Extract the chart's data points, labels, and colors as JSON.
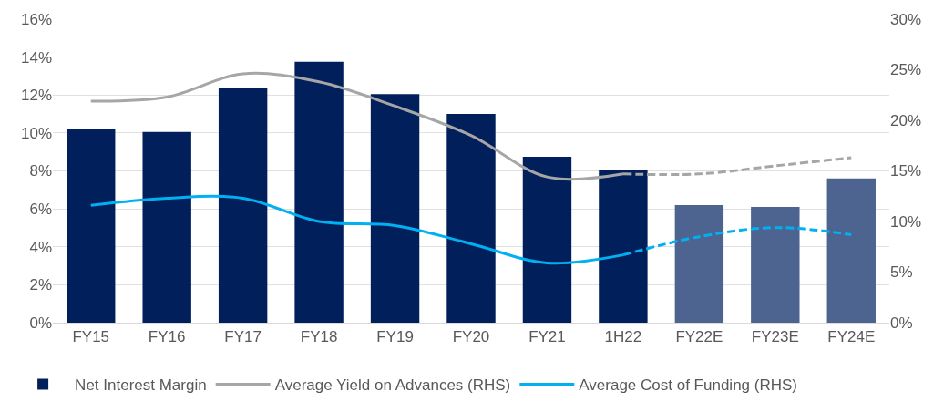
{
  "chart_data": {
    "type": "bar",
    "categories": [
      "FY15",
      "FY16",
      "FY17",
      "FY18",
      "FY19",
      "FY20",
      "FY21",
      "1H22",
      "FY22E",
      "FY23E",
      "FY24E"
    ],
    "series": [
      {
        "name": "Net Interest Margin",
        "colors": [
          "#001f5b",
          "#001f5b",
          "#001f5b",
          "#001f5b",
          "#001f5b",
          "#001f5b",
          "#001f5b",
          "#001f5b",
          "#4d6491",
          "#4d6491",
          "#4d6491"
        ],
        "values": [
          10.2,
          10.05,
          12.35,
          13.75,
          12.05,
          11.0,
          8.75,
          8.05,
          6.2,
          6.1,
          7.6
        ]
      },
      {
        "name": "Average Yield on Advances (RHS)",
        "type": "line",
        "axis": "y2",
        "color": "#a6a6a6",
        "line_style": "solid",
        "values": [
          21.9,
          22.3,
          24.6,
          23.8,
          21.4,
          18.5,
          14.4,
          14.7,
          null,
          null,
          null
        ]
      },
      {
        "type": "line",
        "axis": "y2",
        "color": "#a6a6a6",
        "line_style": "dashed",
        "values": [
          null,
          null,
          null,
          null,
          null,
          null,
          null,
          14.7,
          14.7,
          15.5,
          16.3
        ]
      },
      {
        "name": "Average Cost of Funding (RHS)",
        "type": "line",
        "axis": "y2",
        "color": "#00b0f0",
        "line_style": "solid",
        "values": [
          11.6,
          12.3,
          12.3,
          10.0,
          9.6,
          7.8,
          5.9,
          6.7,
          null,
          null,
          null
        ]
      },
      {
        "type": "line",
        "axis": "y2",
        "color": "#00b0f0",
        "line_style": "dashed",
        "values": [
          null,
          null,
          null,
          null,
          null,
          null,
          null,
          6.7,
          8.5,
          9.4,
          8.7
        ]
      }
    ],
    "ylim": [
      0,
      16
    ],
    "yticks": [
      {
        "value": 0,
        "label": "0%"
      },
      {
        "value": 2,
        "label": "2%"
      },
      {
        "value": 4,
        "label": "4%"
      },
      {
        "value": 6,
        "label": "6%"
      },
      {
        "value": 8,
        "label": "8%"
      },
      {
        "value": 10,
        "label": "10%"
      },
      {
        "value": 12,
        "label": "12%"
      },
      {
        "value": 14,
        "label": "14%"
      },
      {
        "value": 16,
        "label": "16%"
      }
    ],
    "y2lim": [
      0,
      30
    ],
    "y2ticks": [
      {
        "value": 0,
        "label": "0%"
      },
      {
        "value": 5,
        "label": "5%"
      },
      {
        "value": 10,
        "label": "10%"
      },
      {
        "value": 15,
        "label": "15%"
      },
      {
        "value": 20,
        "label": "20%"
      },
      {
        "value": 25,
        "label": "25%"
      },
      {
        "value": 30,
        "label": "30%"
      }
    ],
    "grid": "y",
    "legend": "bottom",
    "marker": "none"
  }
}
